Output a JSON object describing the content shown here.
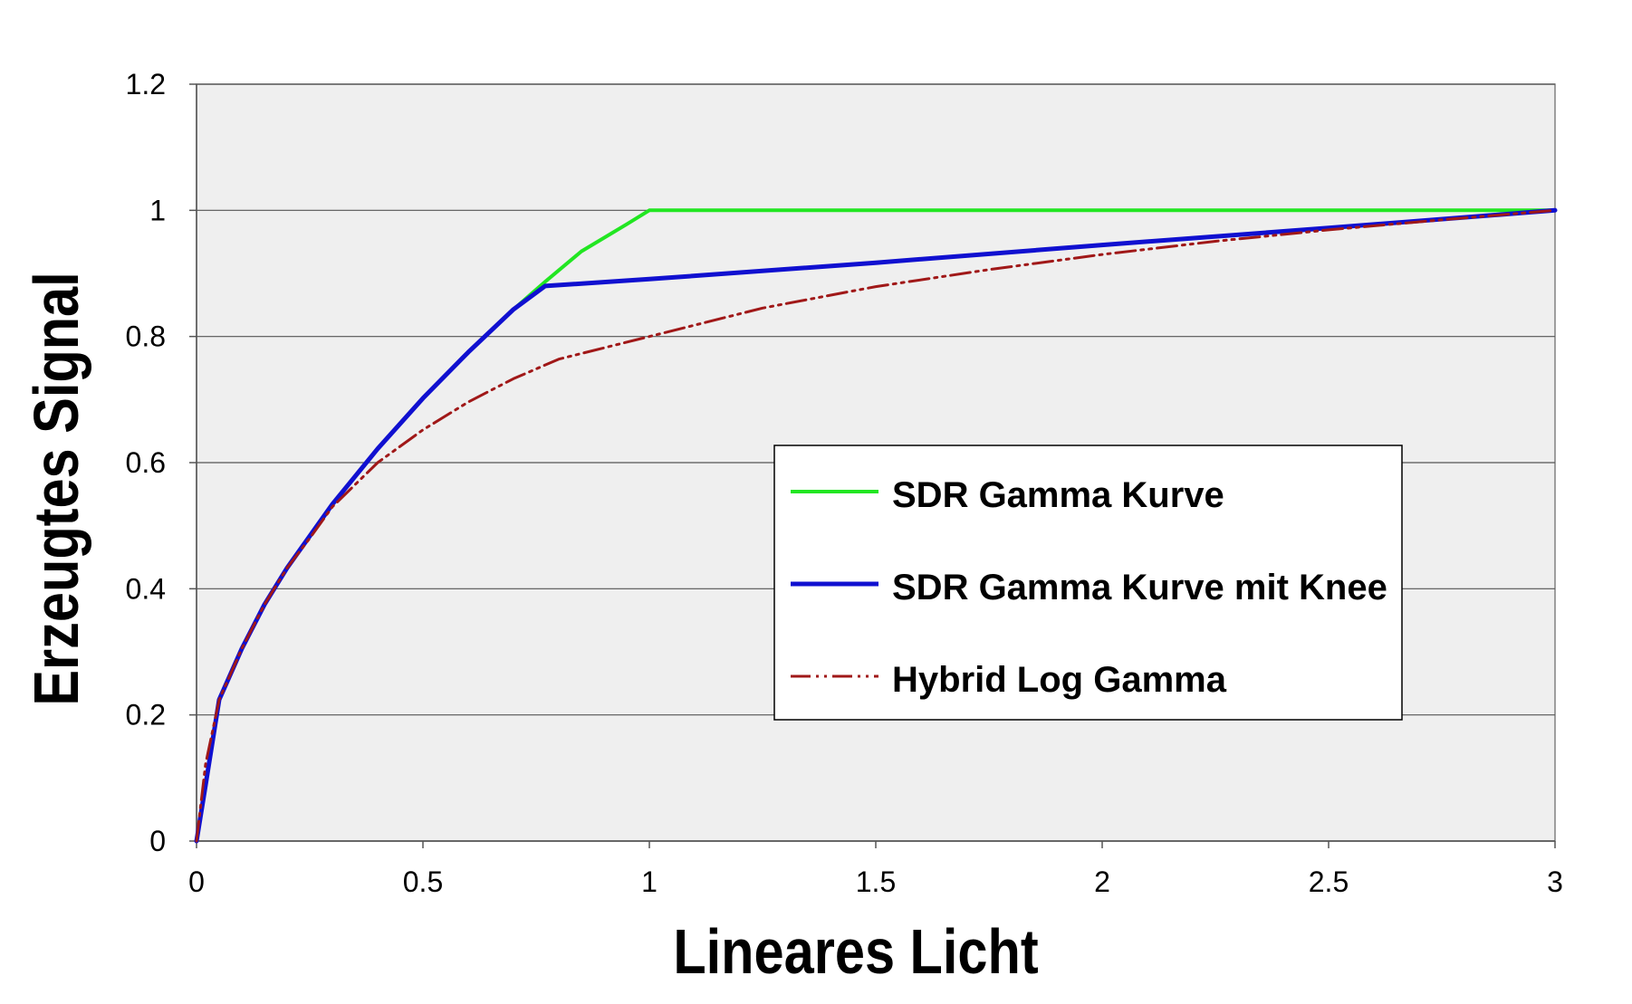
{
  "chart_data": {
    "type": "line",
    "title": "",
    "xlabel": "Lineares Licht",
    "ylabel": "Erzeugtes Signal",
    "xlim": [
      0,
      3
    ],
    "ylim": [
      0,
      1.2
    ],
    "x_ticks": [
      "0",
      "0.5",
      "1",
      "1.5",
      "2",
      "2.5",
      "3"
    ],
    "y_ticks": [
      "0",
      "0.2",
      "0.4",
      "0.6",
      "0.8",
      "1",
      "1.2"
    ],
    "grid": "horizontal",
    "plot_background": "#efefef",
    "legend_position": "center-right",
    "series": [
      {
        "name": "SDR Gamma Kurve",
        "color": "#22e622",
        "style": "solid",
        "x": [
          0,
          0.018,
          0.05,
          0.1,
          0.15,
          0.2,
          0.3,
          0.4,
          0.5,
          0.6,
          0.7,
          0.77,
          0.85,
          0.95,
          1.0,
          3.0
        ],
        "y": [
          0,
          0.08,
          0.224,
          0.305,
          0.375,
          0.433,
          0.534,
          0.622,
          0.702,
          0.775,
          0.843,
          0.887,
          0.935,
          0.978,
          1.0,
          1.0
        ]
      },
      {
        "name": "SDR Gamma Kurve mit Knee",
        "color": "#1010d0",
        "style": "solid",
        "x": [
          0,
          0.018,
          0.05,
          0.1,
          0.15,
          0.2,
          0.3,
          0.4,
          0.5,
          0.6,
          0.7,
          0.77,
          1.0,
          1.5,
          2.0,
          2.5,
          3.0
        ],
        "y": [
          0,
          0.08,
          0.224,
          0.305,
          0.375,
          0.433,
          0.534,
          0.622,
          0.702,
          0.775,
          0.843,
          0.88,
          0.891,
          0.917,
          0.945,
          0.972,
          1.0
        ]
      },
      {
        "name": "Hybrid Log Gamma",
        "color": "#a01818",
        "style": "dash-dot-dot",
        "x": [
          0,
          0.02,
          0.05,
          0.1,
          0.15,
          0.2,
          0.25,
          0.3,
          0.4,
          0.5,
          0.6,
          0.7,
          0.8,
          1.0,
          1.25,
          1.5,
          1.75,
          2.0,
          2.25,
          2.5,
          2.75,
          3.0
        ],
        "y": [
          0,
          0.122,
          0.224,
          0.305,
          0.375,
          0.433,
          0.48,
          0.53,
          0.6,
          0.652,
          0.696,
          0.733,
          0.764,
          0.8,
          0.845,
          0.879,
          0.906,
          0.93,
          0.951,
          0.969,
          0.985,
          1.0
        ]
      }
    ]
  }
}
